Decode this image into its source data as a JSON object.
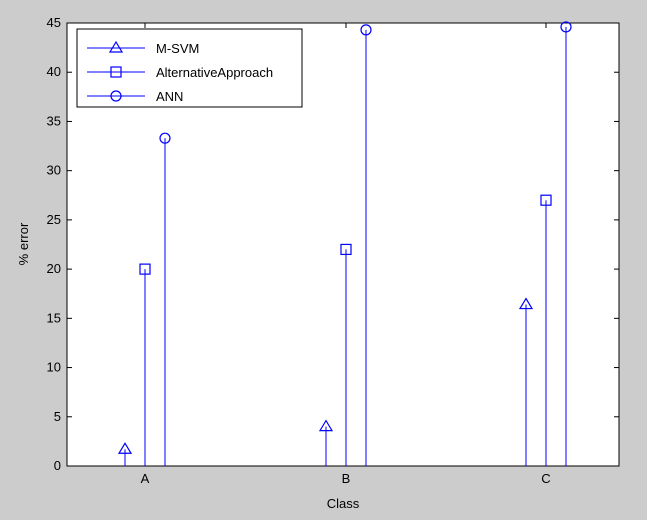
{
  "chart_data": {
    "type": "stem",
    "xlabel": "Class",
    "ylabel": "% error",
    "categories": [
      "A",
      "B",
      "C"
    ],
    "ylim": [
      0,
      45
    ],
    "yticks": [
      0,
      5,
      10,
      15,
      20,
      25,
      30,
      35,
      40,
      45
    ],
    "grid": false,
    "legend_position": "top-left",
    "series": [
      {
        "name": "M-SVM",
        "marker": "triangle",
        "color": "#0000ff",
        "values": [
          1.7,
          4.0,
          16.4
        ]
      },
      {
        "name": "AlternativeApproach",
        "marker": "square",
        "color": "#0000ff",
        "values": [
          20.0,
          22.0,
          27.0
        ]
      },
      {
        "name": "ANN",
        "marker": "circle",
        "color": "#0000ff",
        "values": [
          33.3,
          44.3,
          44.6
        ]
      }
    ]
  }
}
